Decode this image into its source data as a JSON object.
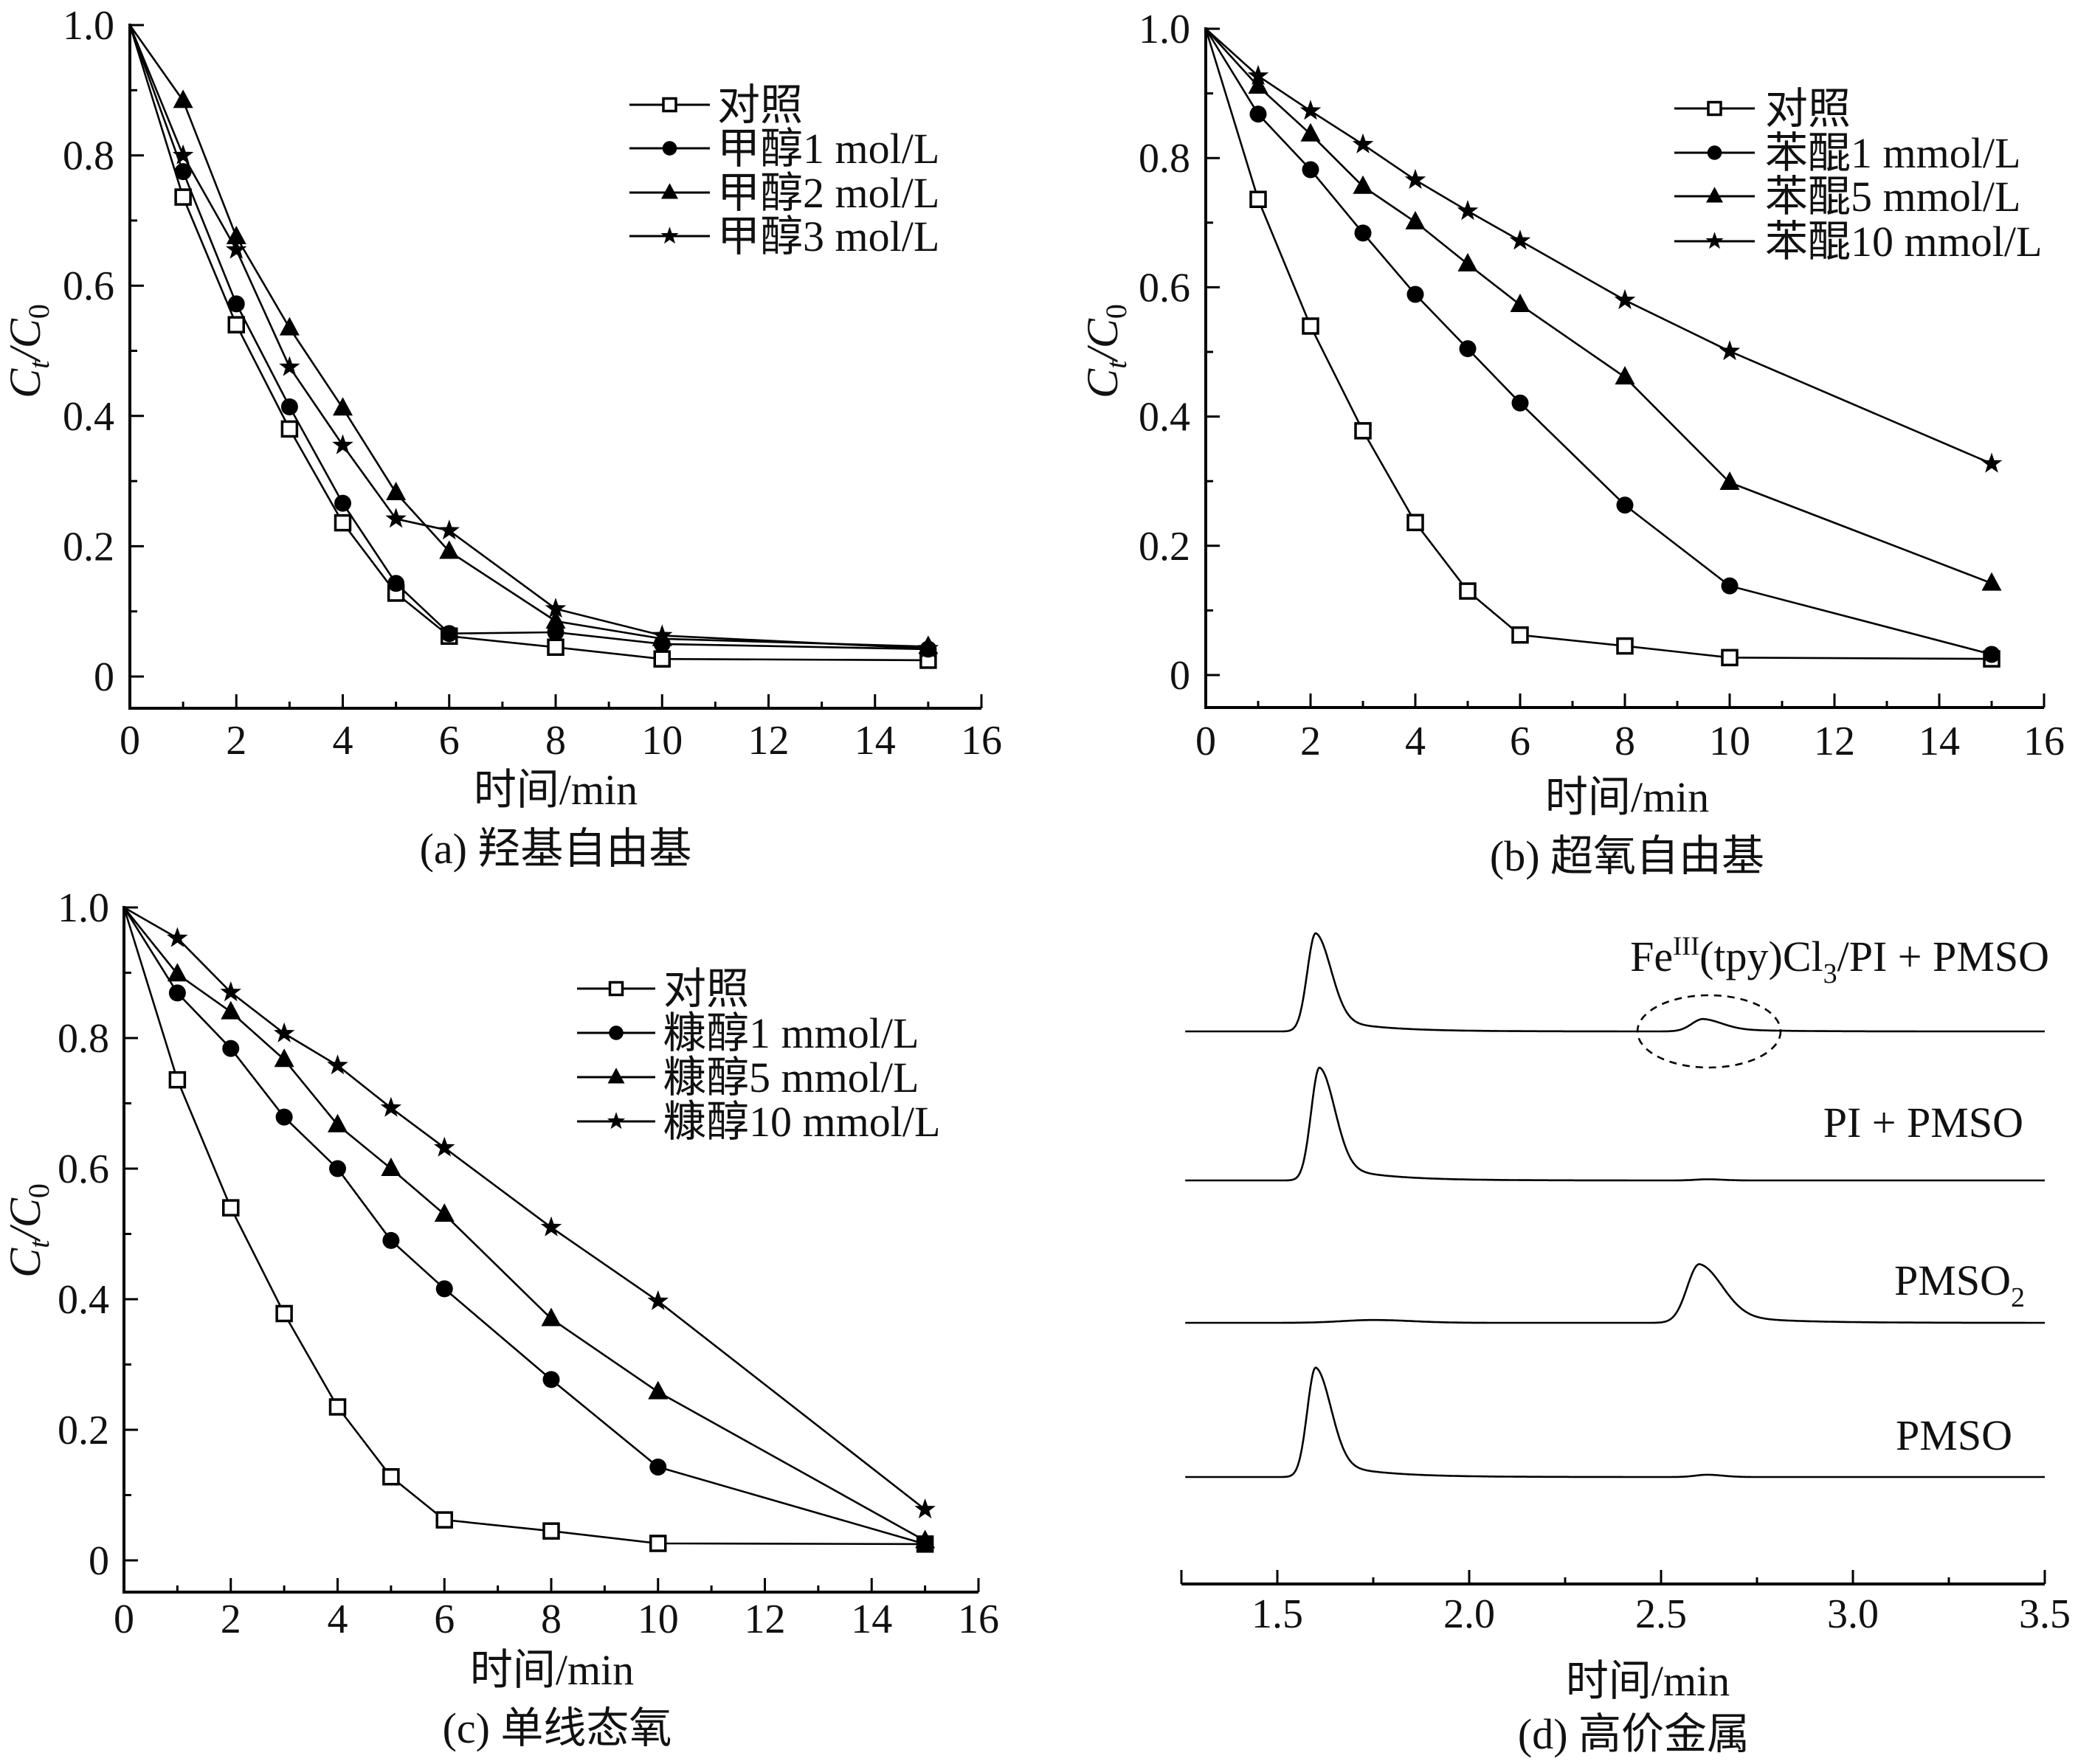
{
  "colors": {
    "ink": "#000000",
    "background": "#ffffff"
  },
  "chart_data": [
    {
      "type": "line",
      "caption": "(a) 羟基自由基",
      "xlabel": "时间/min",
      "ylabel": {
        "c1": "C",
        "s1": "t",
        "slash": "/",
        "c2": "C",
        "s2": "0"
      },
      "xlim": [
        0,
        16
      ],
      "ylim": [
        -0.05,
        1.0
      ],
      "xticks": [
        "0",
        "2",
        "4",
        "6",
        "8",
        "10",
        "12",
        "14",
        "16"
      ],
      "yticks": [
        "0",
        "0.2",
        "0.4",
        "0.6",
        "0.8",
        "1.0"
      ],
      "grid": false,
      "legend": "top-right",
      "x": [
        0,
        1,
        2,
        3,
        4,
        5,
        6,
        8,
        10,
        15
      ],
      "series": [
        {
          "name": "对照",
          "marker": "open-square",
          "values": [
            1.0,
            0.736,
            0.54,
            0.38,
            0.236,
            0.128,
            0.062,
            0.045,
            0.027,
            0.025
          ]
        },
        {
          "name": "甲醇1 mol/L",
          "marker": "filled-circle",
          "values": [
            1.0,
            0.775,
            0.572,
            0.414,
            0.266,
            0.143,
            0.066,
            0.068,
            0.05,
            0.042
          ]
        },
        {
          "name": "甲醇2 mol/L",
          "marker": "filled-triangle",
          "values": [
            1.0,
            0.884,
            0.675,
            0.535,
            0.412,
            0.282,
            0.192,
            0.085,
            0.058,
            0.046
          ]
        },
        {
          "name": "甲醇3 mol/L",
          "marker": "filled-star",
          "values": [
            1.0,
            0.8,
            0.655,
            0.475,
            0.355,
            0.242,
            0.224,
            0.104,
            0.063,
            0.043
          ]
        }
      ]
    },
    {
      "type": "line",
      "caption": "(b) 超氧自由基",
      "xlabel": "时间/min",
      "ylabel": {
        "c1": "C",
        "s1": "t",
        "slash": "/",
        "c2": "C",
        "s2": "0"
      },
      "xlim": [
        0,
        16
      ],
      "ylim": [
        -0.05,
        1.0
      ],
      "xticks": [
        "0",
        "2",
        "4",
        "6",
        "8",
        "10",
        "12",
        "14",
        "16"
      ],
      "yticks": [
        "0",
        "0.2",
        "0.4",
        "0.6",
        "0.8",
        "1.0"
      ],
      "grid": false,
      "legend": "top-right",
      "x": [
        0,
        1,
        2,
        3,
        4,
        5,
        6,
        8,
        10,
        15
      ],
      "series": [
        {
          "name": "对照",
          "marker": "open-square",
          "values": [
            1.0,
            0.736,
            0.54,
            0.378,
            0.236,
            0.13,
            0.062,
            0.045,
            0.027,
            0.025
          ]
        },
        {
          "name": "苯醌1 mmol/L",
          "marker": "filled-circle",
          "values": [
            1.0,
            0.868,
            0.782,
            0.684,
            0.589,
            0.505,
            0.421,
            0.263,
            0.138,
            0.032
          ]
        },
        {
          "name": "苯醌5 mmol/L",
          "marker": "filled-triangle",
          "values": [
            1.0,
            0.911,
            0.837,
            0.756,
            0.701,
            0.636,
            0.573,
            0.461,
            0.298,
            0.142
          ]
        },
        {
          "name": "苯醌10 mmol/L",
          "marker": "filled-star",
          "values": [
            1.0,
            0.927,
            0.873,
            0.821,
            0.766,
            0.718,
            0.672,
            0.58,
            0.501,
            0.327
          ]
        }
      ]
    },
    {
      "type": "line",
      "caption": "(c) 单线态氧",
      "xlabel": "时间/min",
      "ylabel": {
        "c1": "C",
        "s1": "t",
        "slash": "/",
        "c2": "C",
        "s2": "0"
      },
      "xlim": [
        0,
        16
      ],
      "ylim": [
        -0.05,
        1.0
      ],
      "xticks": [
        "0",
        "2",
        "4",
        "6",
        "8",
        "10",
        "12",
        "14",
        "16"
      ],
      "yticks": [
        "0",
        "0.2",
        "0.4",
        "0.6",
        "0.8",
        "1.0"
      ],
      "grid": false,
      "legend": "top-right",
      "x": [
        0,
        1,
        2,
        3,
        4,
        5,
        6,
        8,
        10,
        15
      ],
      "series": [
        {
          "name": "对照",
          "marker": "open-square",
          "values": [
            1.0,
            0.736,
            0.54,
            0.378,
            0.235,
            0.128,
            0.062,
            0.045,
            0.026,
            0.025
          ]
        },
        {
          "name": "糠醇1 mmol/L",
          "marker": "filled-circle",
          "values": [
            1.0,
            0.869,
            0.784,
            0.679,
            0.6,
            0.49,
            0.416,
            0.277,
            0.143,
            0.025
          ]
        },
        {
          "name": "糠醇5 mmol/L",
          "marker": "filled-triangle",
          "values": [
            1.0,
            0.898,
            0.84,
            0.767,
            0.667,
            0.6,
            0.53,
            0.37,
            0.258,
            0.03
          ]
        },
        {
          "name": "糠醇10 mmol/L",
          "marker": "filled-star",
          "values": [
            1.0,
            0.953,
            0.87,
            0.807,
            0.758,
            0.693,
            0.632,
            0.51,
            0.397,
            0.078
          ]
        }
      ]
    },
    {
      "type": "line",
      "caption": "(d) 高价金属",
      "xlabel": "时间/min",
      "xlim": [
        1.25,
        3.5
      ],
      "xticks": [
        "1.5",
        "2.0",
        "2.5",
        "3.0",
        "3.5"
      ],
      "grid": false,
      "y_axis_visible": false,
      "series": [
        {
          "label": {
            "a": "Fe",
            "sup": "III",
            "b": "(tpy)Cl",
            "sub": "3",
            "c": "/PI + PMSO"
          },
          "peaks": [
            {
              "t": 1.6,
              "intensity": 0.87,
              "sigma_left": 0.022,
              "sigma_right": 0.04,
              "tail_fraction": 0.16,
              "tail_decay": 0.13
            },
            {
              "t": 2.61,
              "intensity": 0.11,
              "sigma_left": 0.03,
              "sigma_right": 0.05,
              "tail_fraction": 0.3,
              "tail_decay": 0.12
            }
          ],
          "annotation": {
            "type": "dashed-ellipse",
            "t": 2.625
          }
        },
        {
          "label": {
            "a": "PI + PMSO"
          },
          "peaks": [
            {
              "t": 1.61,
              "intensity": 1.0,
              "sigma_left": 0.022,
              "sigma_right": 0.04,
              "tail_fraction": 0.16,
              "tail_decay": 0.13
            },
            {
              "t": 2.62,
              "intensity": 0.01,
              "sigma_left": 0.03,
              "sigma_right": 0.04,
              "tail_fraction": 0,
              "tail_decay": 0.1
            }
          ]
        },
        {
          "label": {
            "a": "PMSO",
            "sub": "2"
          },
          "peaks": [
            {
              "t": 1.75,
              "intensity": 0.025,
              "sigma_left": 0.08,
              "sigma_right": 0.1,
              "tail_fraction": 0,
              "tail_decay": 0.1
            },
            {
              "t": 2.6,
              "intensity": 0.52,
              "sigma_left": 0.032,
              "sigma_right": 0.06,
              "tail_fraction": 0.18,
              "tail_decay": 0.15
            }
          ]
        },
        {
          "label": {
            "a": "PMSO"
          },
          "peaks": [
            {
              "t": 1.6,
              "intensity": 0.97,
              "sigma_left": 0.022,
              "sigma_right": 0.04,
              "tail_fraction": 0.16,
              "tail_decay": 0.13
            },
            {
              "t": 2.62,
              "intensity": 0.02,
              "sigma_left": 0.03,
              "sigma_right": 0.04,
              "tail_fraction": 0,
              "tail_decay": 0.1
            }
          ]
        }
      ]
    }
  ]
}
